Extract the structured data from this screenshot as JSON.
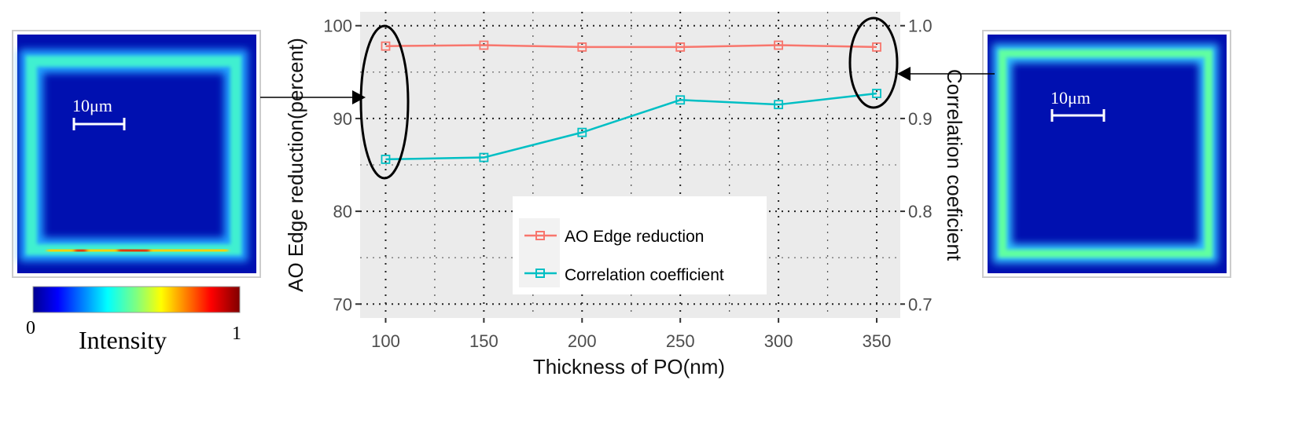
{
  "chart_data": {
    "type": "line",
    "x": [
      100,
      150,
      200,
      250,
      300,
      350
    ],
    "xlabel": "Thickness of PO(nm)",
    "ylabel": "AO Edge reduction(percent)",
    "y2label": "Correlation coeficient",
    "xticks": [
      "100",
      "150",
      "200",
      "250",
      "300",
      "350"
    ],
    "yticks": [
      "70",
      "80",
      "90",
      "100"
    ],
    "y2ticks": [
      "0.7",
      "0.8",
      "0.9",
      "1.0"
    ],
    "ylim": [
      68.5,
      101.5
    ],
    "y2lim": [
      0.685,
      1.015
    ],
    "xlim": [
      87,
      362
    ],
    "grid": true,
    "legend_position": "bottom-center",
    "series": [
      {
        "name": "AO Edge reduction",
        "axis": "left",
        "color": "#f8766d",
        "marker": "open-square",
        "values": [
          97.8,
          97.9,
          97.7,
          97.7,
          97.9,
          97.7
        ]
      },
      {
        "name": "Correlation coefficient",
        "axis": "right",
        "color": "#00bfc4",
        "marker": "open-square",
        "values": [
          0.856,
          0.858,
          0.885,
          0.92,
          0.915,
          0.927
        ]
      }
    ]
  },
  "left_image": {
    "scale_bar": "10μm"
  },
  "right_image": {
    "scale_bar": "10μm"
  },
  "colorbar": {
    "label": "Intensity",
    "min": "0",
    "max": "1",
    "colormap": "jet"
  }
}
